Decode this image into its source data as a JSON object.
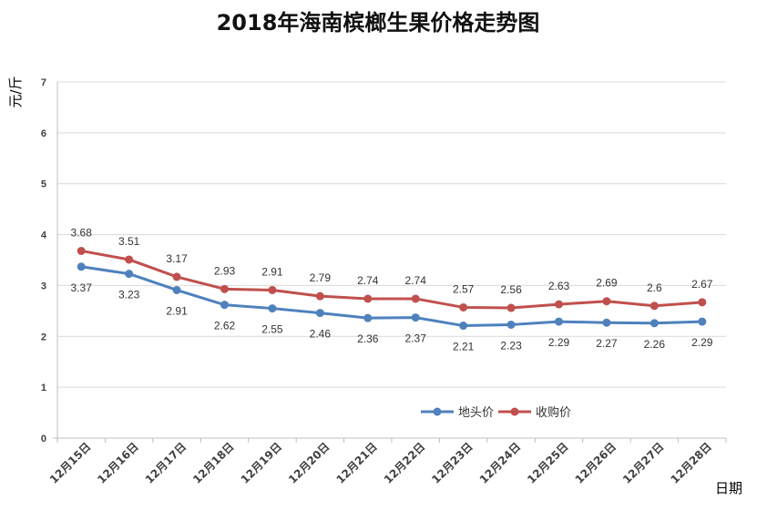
{
  "chart_data": {
    "type": "line",
    "title": "2018年海南槟榔生果价格走势图",
    "xlabel": "日期",
    "ylabel": "元/斤",
    "ylim": [
      0,
      7
    ],
    "yticks": [
      "0",
      "1",
      "2",
      "3",
      "4",
      "5",
      "6",
      "7"
    ],
    "grid": true,
    "legend_position": "bottom-right",
    "categories": [
      "12月15日",
      "12月16日",
      "12月17日",
      "12月18日",
      "12月19日",
      "12月20日",
      "12月21日",
      "12月22日",
      "12月23日",
      "12月24日",
      "12月25日",
      "12月26日",
      "12月27日",
      "12月28日"
    ],
    "series": [
      {
        "name": "地头价",
        "color": "#4F81BD",
        "values": [
          3.37,
          3.23,
          2.91,
          2.62,
          2.55,
          2.46,
          2.36,
          2.37,
          2.21,
          2.23,
          2.29,
          2.27,
          2.26,
          2.29
        ],
        "labels": [
          "3.37",
          "3.23",
          "2.91",
          "2.62",
          "2.55",
          "2.46",
          "2.36",
          "2.37",
          "2.21",
          "2.23",
          "2.29",
          "2.27",
          "2.26",
          "2.29"
        ],
        "label_position": "below"
      },
      {
        "name": "收购价",
        "color": "#C0504D",
        "values": [
          3.68,
          3.51,
          3.17,
          2.93,
          2.91,
          2.79,
          2.74,
          2.74,
          2.57,
          2.56,
          2.63,
          2.69,
          2.6,
          2.67
        ],
        "labels": [
          "3.68",
          "3.51",
          "3.17",
          "2.93",
          "2.91",
          "2.79",
          "2.74",
          "2.74",
          "2.57",
          "2.56",
          "2.63",
          "2.69",
          "2.6",
          "2.67"
        ],
        "label_position": "above"
      }
    ]
  }
}
